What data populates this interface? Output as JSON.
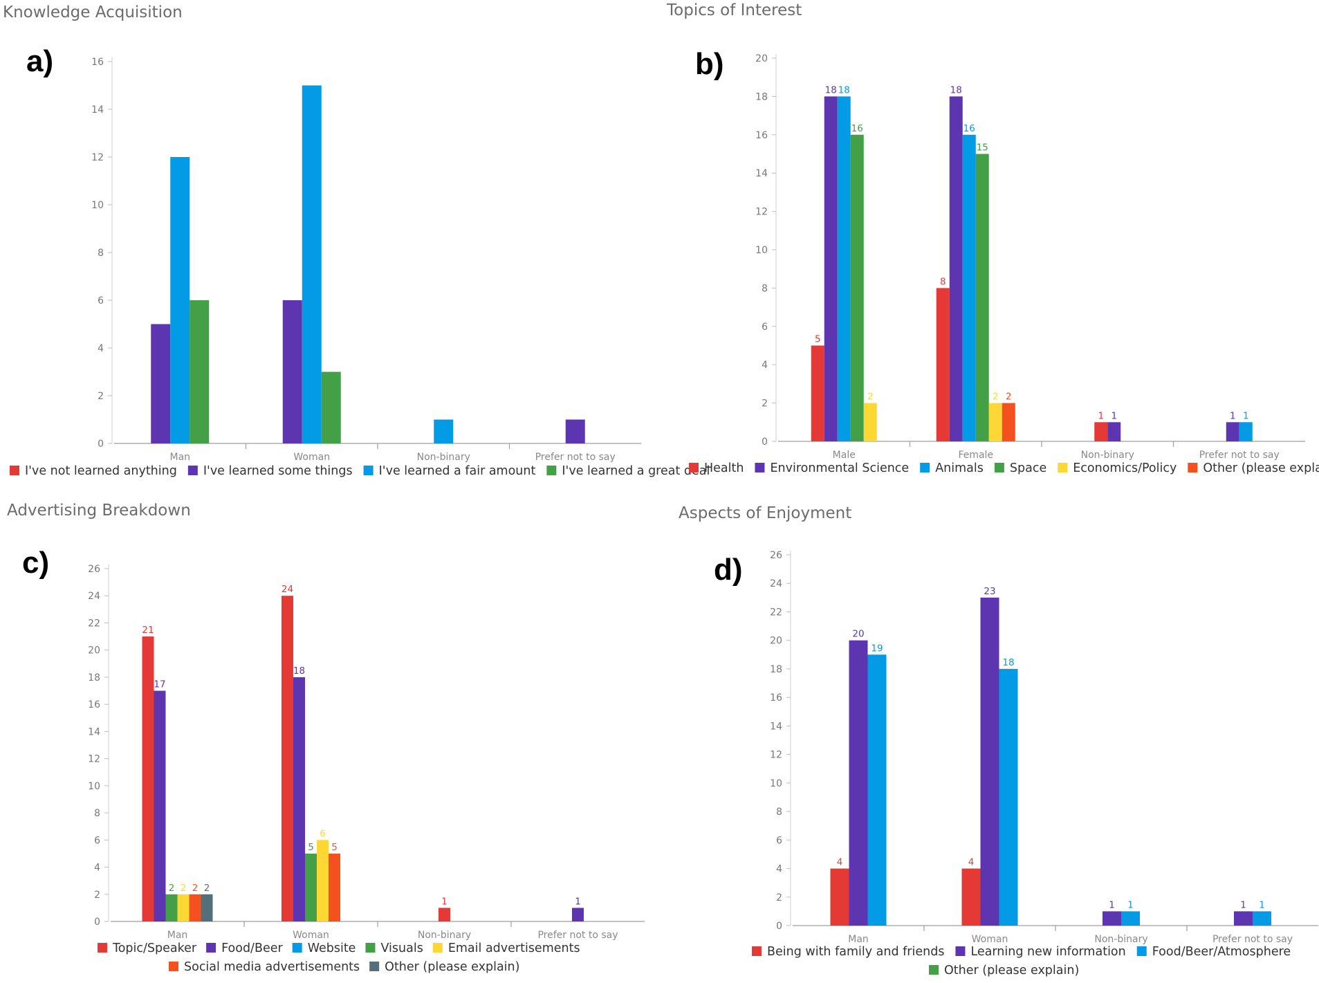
{
  "chart_data": [
    {
      "type": "bar",
      "panel_label": "a)",
      "title": "Knowledge Acquisition",
      "categories": [
        "Man",
        "Woman",
        "Non-binary",
        "Prefer not to say"
      ],
      "ylim": [
        0,
        16
      ],
      "yticks": [
        0,
        2,
        4,
        6,
        8,
        10,
        12,
        14,
        16
      ],
      "show_data_labels": false,
      "legend_position": "bottom",
      "series": [
        {
          "name": "I've not learned anything",
          "color": "#e53935",
          "values": [
            0,
            0,
            0,
            0
          ]
        },
        {
          "name": "I've learned some things",
          "color": "#5e35b1",
          "values": [
            5,
            6,
            0,
            1
          ]
        },
        {
          "name": "I've learned a fair amount",
          "color": "#039be5",
          "values": [
            12,
            15,
            1,
            0
          ]
        },
        {
          "name": "I've learned a great deal",
          "color": "#43a047",
          "values": [
            6,
            3,
            0,
            0
          ]
        }
      ]
    },
    {
      "type": "bar",
      "panel_label": "b)",
      "title": "Topics of Interest",
      "categories": [
        "Male",
        "Female",
        "Non-binary",
        "Prefer not to say"
      ],
      "ylim": [
        0,
        20
      ],
      "yticks": [
        0,
        2,
        4,
        6,
        8,
        10,
        12,
        14,
        16,
        18,
        20
      ],
      "show_data_labels": true,
      "legend_position": "bottom",
      "series": [
        {
          "name": "Health",
          "color": "#e53935",
          "values": [
            5,
            8,
            1,
            0
          ]
        },
        {
          "name": "Environmental Science",
          "color": "#5e35b1",
          "values": [
            18,
            18,
            1,
            1
          ]
        },
        {
          "name": "Animals",
          "color": "#039be5",
          "values": [
            18,
            16,
            0,
            1
          ]
        },
        {
          "name": "Space",
          "color": "#43a047",
          "values": [
            16,
            15,
            0,
            0
          ]
        },
        {
          "name": "Economics/Policy",
          "color": "#fdd835",
          "values": [
            2,
            2,
            0,
            0
          ]
        },
        {
          "name": "Other (please explain)",
          "color": "#f4511e",
          "values": [
            0,
            2,
            0,
            0
          ]
        }
      ]
    },
    {
      "type": "bar",
      "panel_label": "c)",
      "title": "Advertising Breakdown",
      "categories": [
        "Man",
        "Woman",
        "Non-binary",
        "Prefer not to say"
      ],
      "ylim": [
        0,
        26
      ],
      "yticks": [
        0,
        2,
        4,
        6,
        8,
        10,
        12,
        14,
        16,
        18,
        20,
        22,
        24,
        26
      ],
      "show_data_labels": true,
      "legend_position": "bottom",
      "series": [
        {
          "name": "Topic/Speaker",
          "color": "#e53935",
          "values": [
            21,
            24,
            1,
            0
          ]
        },
        {
          "name": "Food/Beer",
          "color": "#5e35b1",
          "values": [
            17,
            18,
            0,
            1
          ]
        },
        {
          "name": "Website",
          "color": "#039be5",
          "values": [
            0,
            0,
            0,
            0
          ]
        },
        {
          "name": "Visuals",
          "color": "#43a047",
          "values": [
            2,
            5,
            0,
            0
          ]
        },
        {
          "name": "Email advertisements",
          "color": "#fdd835",
          "values": [
            2,
            6,
            0,
            0
          ]
        },
        {
          "name": "Social media advertisements",
          "color": "#f4511e",
          "values": [
            2,
            5,
            0,
            0
          ]
        },
        {
          "name": "Other (please explain)",
          "color": "#546e7a",
          "values": [
            2,
            0,
            0,
            0
          ]
        }
      ]
    },
    {
      "type": "bar",
      "panel_label": "d)",
      "title": "Aspects of Enjoyment",
      "categories": [
        "Man",
        "Woman",
        "Non-binary",
        "Prefer not to say"
      ],
      "ylim": [
        0,
        26
      ],
      "yticks": [
        0,
        2,
        4,
        6,
        8,
        10,
        12,
        14,
        16,
        18,
        20,
        22,
        24,
        26
      ],
      "show_data_labels": true,
      "legend_position": "bottom",
      "series": [
        {
          "name": "Being with family and friends",
          "color": "#e53935",
          "values": [
            4,
            4,
            0,
            0
          ]
        },
        {
          "name": "Learning new information",
          "color": "#5e35b1",
          "values": [
            20,
            23,
            1,
            1
          ]
        },
        {
          "name": "Food/Beer/Atmosphere",
          "color": "#039be5",
          "values": [
            19,
            18,
            1,
            1
          ]
        },
        {
          "name": "Other (please explain)",
          "color": "#43a047",
          "values": [
            0,
            0,
            0,
            0
          ]
        }
      ]
    }
  ]
}
